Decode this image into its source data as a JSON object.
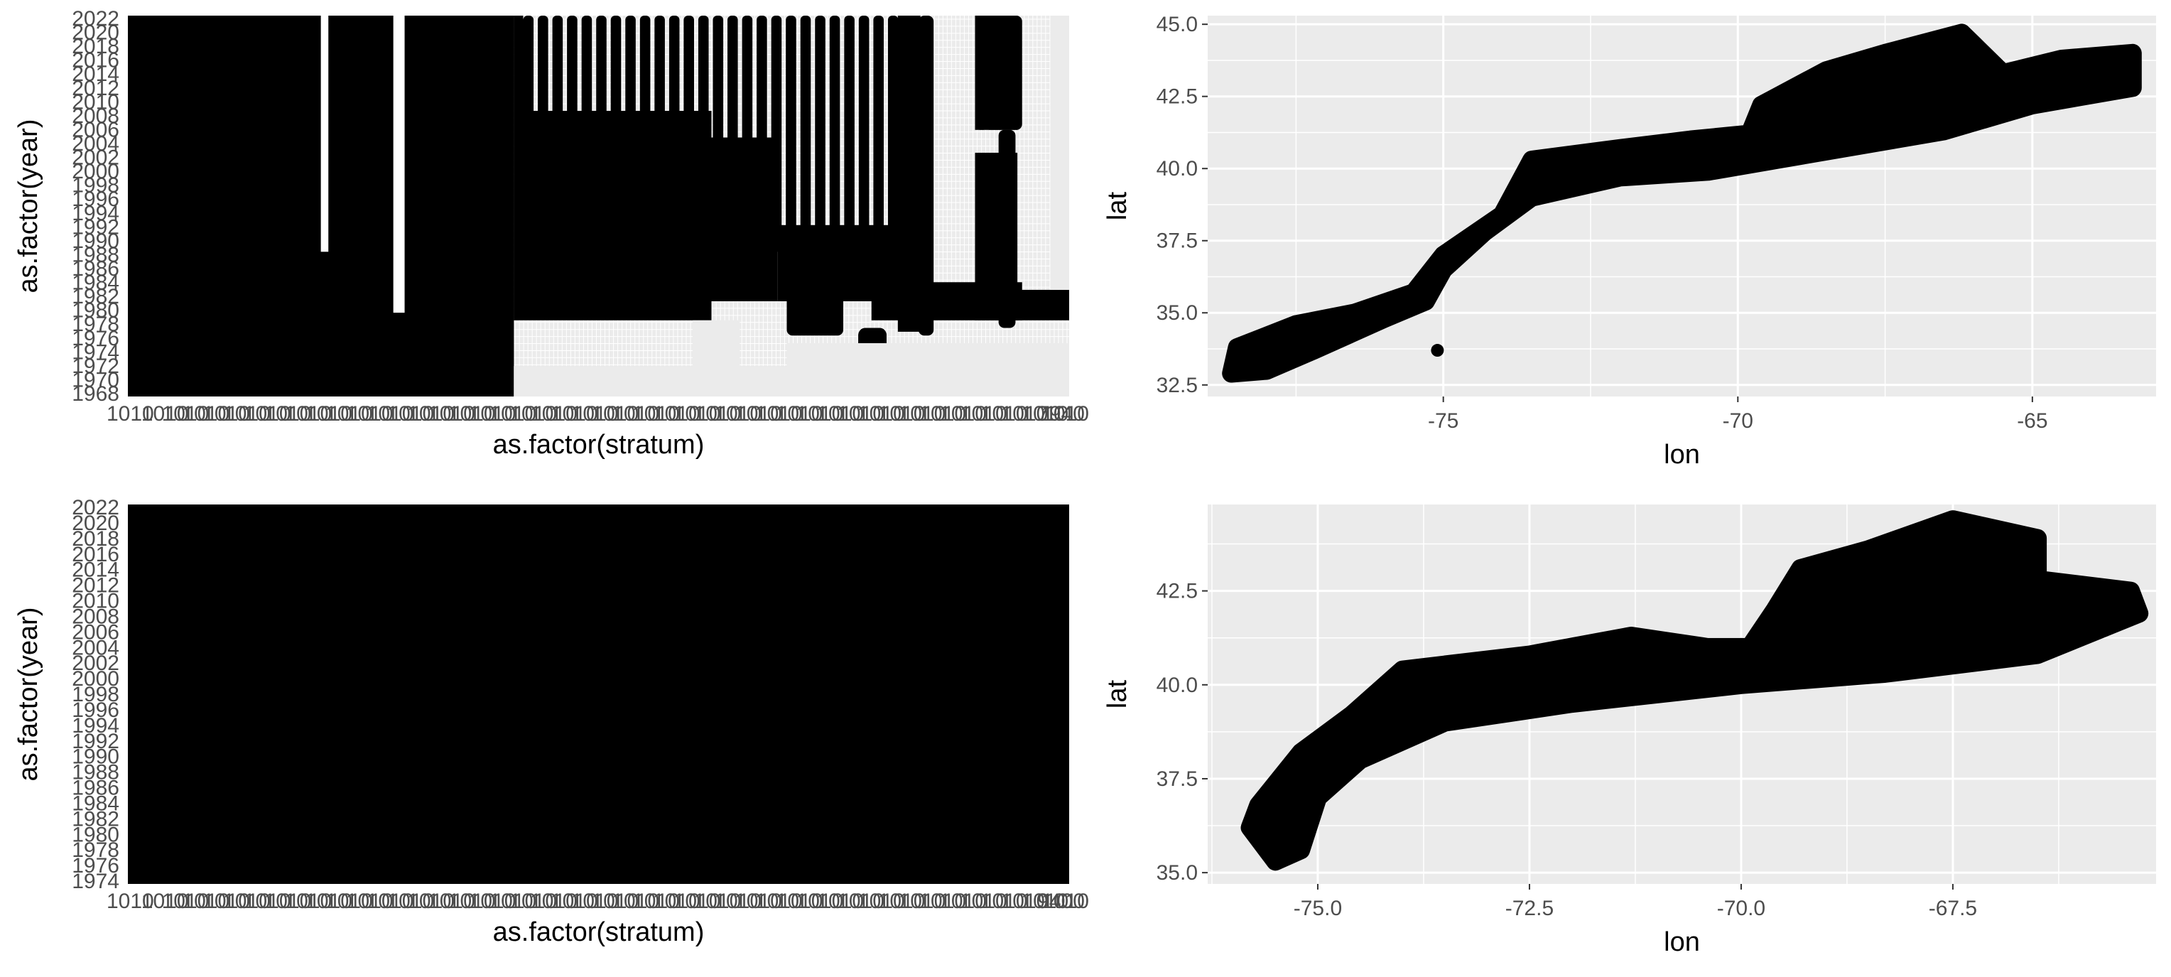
{
  "chart_data": [
    {
      "type": "scatter",
      "panel": "top-left",
      "xlabel": "as.factor(stratum)",
      "ylabel": "as.factor(year)",
      "y_categories": [
        "1968",
        "1970",
        "1972",
        "1974",
        "1976",
        "1978",
        "1980",
        "1982",
        "1984",
        "1986",
        "1988",
        "1990",
        "1992",
        "1994",
        "1996",
        "1998",
        "2000",
        "2002",
        "2004",
        "2006",
        "2008",
        "2010",
        "2012",
        "2014",
        "2016",
        "2018",
        "2020",
        "2022"
      ],
      "y_ticks_shown": [
        "1968",
        "2022"
      ],
      "x_tick_first": "1010",
      "x_tick_last": "7940",
      "note": "dense categorical dot matrix; tick labels overplotted and illegible"
    },
    {
      "type": "scatter",
      "panel": "top-right",
      "xlabel": "lon",
      "ylabel": "lat",
      "x_ticks": [
        -75,
        -70,
        -65
      ],
      "y_ticks": [
        32.5,
        35.0,
        37.5,
        40.0,
        42.5,
        45.0
      ],
      "xlim": [
        -79.0,
        -62.9
      ],
      "ylim": [
        32.1,
        45.3
      ],
      "x_tick_labels": [
        "-75",
        "-70",
        "-65"
      ],
      "y_tick_labels": [
        "32.5",
        "35.0",
        "37.5",
        "40.0",
        "42.5",
        "45.0"
      ],
      "points_outline": [
        [
          -78.5,
          33.8
        ],
        [
          -77.5,
          34.6
        ],
        [
          -76.5,
          35.0
        ],
        [
          -75.5,
          35.7
        ],
        [
          -75.0,
          37.0
        ],
        [
          -74.0,
          38.4
        ],
        [
          -73.5,
          40.3
        ],
        [
          -72.0,
          40.7
        ],
        [
          -70.8,
          41.0
        ],
        [
          -69.8,
          41.2
        ],
        [
          -69.6,
          42.2
        ],
        [
          -68.5,
          43.4
        ],
        [
          -67.5,
          44.0
        ],
        [
          -66.2,
          44.7
        ],
        [
          -66.0,
          44.3
        ],
        [
          -65.5,
          43.3
        ],
        [
          -64.5,
          43.8
        ],
        [
          -63.3,
          44.0
        ],
        [
          -63.3,
          42.8
        ],
        [
          -65.0,
          42.2
        ],
        [
          -66.5,
          41.3
        ],
        [
          -68.5,
          40.6
        ],
        [
          -70.5,
          39.9
        ],
        [
          -72.0,
          39.7
        ],
        [
          -73.5,
          39.0
        ],
        [
          -74.3,
          37.8
        ],
        [
          -75.0,
          36.5
        ],
        [
          -75.3,
          35.4
        ],
        [
          -76.0,
          34.8
        ],
        [
          -77.2,
          33.7
        ],
        [
          -78.0,
          33.0
        ],
        [
          -78.6,
          32.9
        ]
      ],
      "outlier": [
        -75.1,
        33.7
      ]
    },
    {
      "type": "scatter",
      "panel": "bottom-left",
      "xlabel": "as.factor(stratum)",
      "ylabel": "as.factor(year)",
      "y_categories": [
        "1974",
        "1976",
        "1978",
        "1980",
        "1982",
        "1984",
        "1986",
        "1988",
        "1990",
        "1992",
        "1994",
        "1996",
        "1998",
        "2000",
        "2002",
        "2004",
        "2006",
        "2008",
        "2010",
        "2012",
        "2014",
        "2016",
        "2018",
        "2020",
        "2022"
      ],
      "y_ticks_shown": [
        "1974",
        "2022"
      ],
      "x_tick_first": "1010",
      "x_tick_last": "9400",
      "note": "panel fully covered by points"
    },
    {
      "type": "scatter",
      "panel": "bottom-right",
      "xlabel": "lon",
      "ylabel": "lat",
      "x_ticks": [
        -75.0,
        -72.5,
        -70.0,
        -67.5
      ],
      "y_ticks": [
        35.0,
        37.5,
        40.0,
        42.5
      ],
      "xlim": [
        -76.3,
        -65.1
      ],
      "ylim": [
        34.7,
        44.8
      ],
      "x_tick_labels": [
        "-75.0",
        "-72.5",
        "-70.0",
        "-67.5"
      ],
      "y_tick_labels": [
        "35.0",
        "37.5",
        "40.0",
        "42.5"
      ],
      "points_outline": [
        [
          -75.7,
          36.8
        ],
        [
          -75.2,
          38.2
        ],
        [
          -74.6,
          39.2
        ],
        [
          -74.0,
          40.4
        ],
        [
          -72.5,
          40.8
        ],
        [
          -71.3,
          41.3
        ],
        [
          -70.4,
          41.0
        ],
        [
          -69.9,
          41.0
        ],
        [
          -69.6,
          42.0
        ],
        [
          -69.3,
          43.1
        ],
        [
          -68.5,
          43.6
        ],
        [
          -67.5,
          44.4
        ],
        [
          -66.5,
          43.9
        ],
        [
          -66.5,
          42.8
        ],
        [
          -65.4,
          42.5
        ],
        [
          -65.3,
          41.9
        ],
        [
          -66.5,
          40.8
        ],
        [
          -68.3,
          40.3
        ],
        [
          -70.0,
          40.0
        ],
        [
          -72.0,
          39.5
        ],
        [
          -73.5,
          39.0
        ],
        [
          -74.5,
          38.0
        ],
        [
          -75.0,
          37.0
        ],
        [
          -75.2,
          35.6
        ],
        [
          -75.5,
          35.3
        ],
        [
          -75.8,
          36.2
        ]
      ]
    }
  ]
}
